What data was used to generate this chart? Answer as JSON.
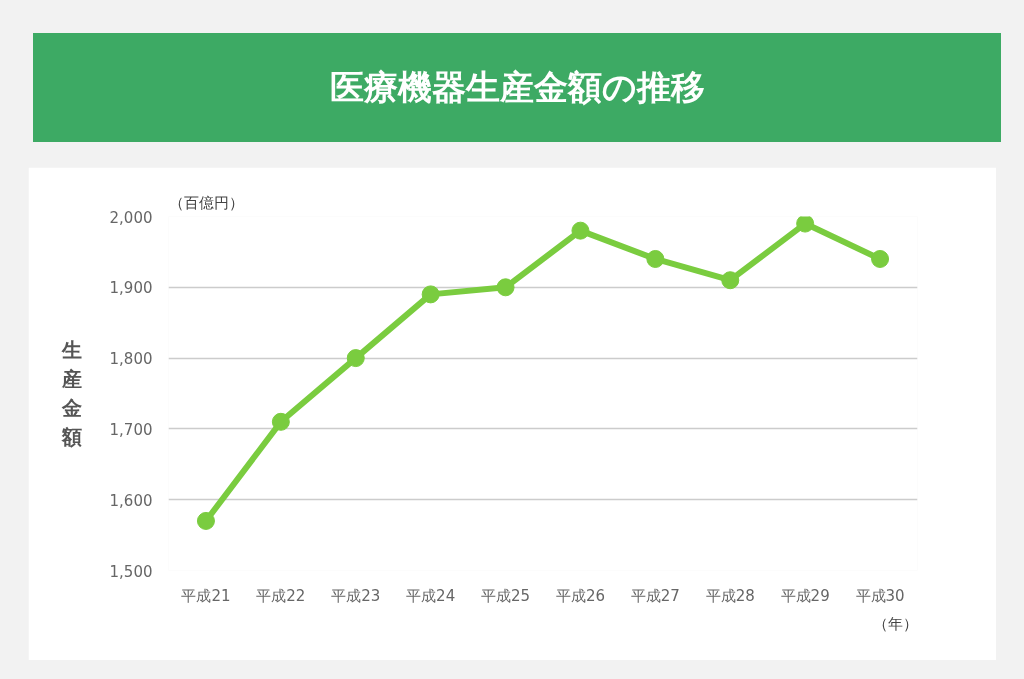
{
  "chart_data": {
    "type": "line",
    "title": "医療機器生産金額の推移",
    "ylabel": "生産金額",
    "annotations": [
      "（百億円）",
      "（年）"
    ],
    "categories": [
      "平成21",
      "平成22",
      "平成23",
      "平成24",
      "平成25",
      "平成26",
      "平成27",
      "平成28",
      "平成29",
      "平成30"
    ],
    "series": [
      {
        "color": "#7acc3f",
        "values": [
          1570,
          1710,
          1800,
          1890,
          1900,
          1980,
          1940,
          1910,
          1990,
          1940
        ]
      }
    ],
    "ylim": [
      1500,
      2000
    ],
    "yticks": [
      {
        "value": 1500,
        "label": "1,500"
      },
      {
        "value": 1600,
        "label": "1,600"
      },
      {
        "value": 1700,
        "label": "1,700"
      },
      {
        "value": 1800,
        "label": "1,800"
      },
      {
        "value": 1900,
        "label": "1,900"
      },
      {
        "value": 2000,
        "label": "2,000"
      }
    ],
    "grid": "y",
    "marker": "circle",
    "line_style": "solid"
  }
}
